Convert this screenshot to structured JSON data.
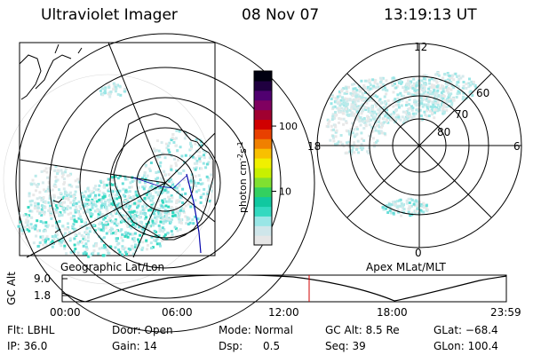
{
  "header": {
    "title": "Ultraviolet Imager",
    "date": "08 Nov 07",
    "time": "13:19:13 UT"
  },
  "left_panel": {
    "caption": "Geographic Lat/Lon"
  },
  "right_panel": {
    "caption": "Apex MLat/MLT",
    "mlt_labels": {
      "top": "12",
      "left": "18",
      "right": "6",
      "bottom": "0"
    },
    "lat_labels": [
      "60",
      "70",
      "80"
    ]
  },
  "colorbar": {
    "unit_label": "photon cm",
    "unit_sup1": "-2",
    "unit_mid": "s",
    "unit_sup2": "-1",
    "ticks": [
      {
        "label": "100",
        "value": 100
      },
      {
        "label": "10",
        "value": 10
      }
    ],
    "colors": [
      "#e6e6e6",
      "#cfe6ea",
      "#99e6e6",
      "#33d9c0",
      "#10c8a0",
      "#33d060",
      "#80e030",
      "#c8f000",
      "#f0f000",
      "#f8c000",
      "#f08000",
      "#e84000",
      "#d00000",
      "#a00030",
      "#800060",
      "#500070",
      "#200040",
      "#000010"
    ]
  },
  "timeline": {
    "y_label": "GC Alt",
    "y_ticks": [
      "9.0",
      "1.8"
    ],
    "x_ticks": [
      "00:00",
      "06:00",
      "12:00",
      "18:00",
      "23:59"
    ],
    "marker_time": "13:19"
  },
  "info": {
    "row1": [
      {
        "key": "flt",
        "text": "Flt: LBHL"
      },
      {
        "key": "door",
        "text": "Door: Open"
      },
      {
        "key": "mode",
        "text": "Mode: Normal"
      },
      {
        "key": "gcalt",
        "text": "GC Alt: 8.5 Re"
      },
      {
        "key": "glat",
        "text": "GLat: −68.4"
      }
    ],
    "row2": [
      {
        "key": "ip",
        "text": "IP: 36.0"
      },
      {
        "key": "gain",
        "text": "Gain: 14"
      },
      {
        "key": "dsp",
        "text": "Dsp:      0.5"
      },
      {
        "key": "seq",
        "text": "Seq: 39"
      },
      {
        "key": "glon",
        "text": "GLon: 100.4"
      }
    ]
  },
  "colors": {
    "aurora": "#99e6e6",
    "aurora_dark": "#33d9c0",
    "marker": "#d00000",
    "path": "#0000aa"
  }
}
